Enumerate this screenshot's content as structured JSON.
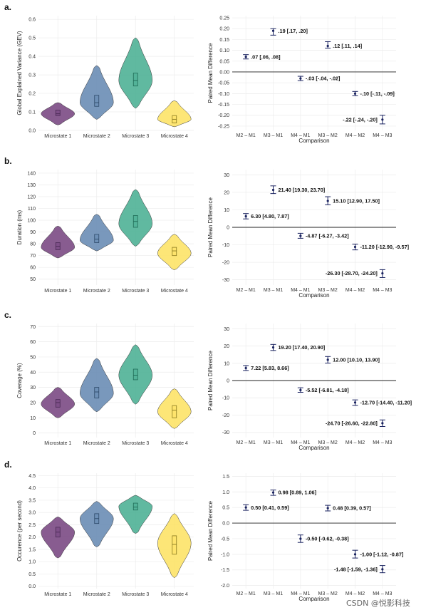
{
  "colors": {
    "microstates": [
      "#7b4a84",
      "#6a8db5",
      "#4fb196",
      "#fde368"
    ],
    "box_outline": [
      "#4a2a55",
      "#2e4a6a",
      "#1e6a55",
      "#8a7a20"
    ],
    "errorbar": "#1a2360",
    "grid": "#ececec"
  },
  "watermark": "CSDN @悦影科技",
  "chart_data": [
    {
      "panel": "a.",
      "type": "violin",
      "ylabel": "Global Explained Variance (GEV)",
      "ylim": [
        0,
        0.62
      ],
      "yticks": [
        0.0,
        0.1,
        0.2,
        0.3,
        0.4,
        0.5,
        0.6
      ],
      "ytick_labels": [
        "0.0",
        "0.1",
        "0.2",
        "0.3",
        "0.4",
        "0.5",
        "0.6"
      ],
      "categories": [
        "Microstate 1",
        "Microstate 2",
        "Microstate 3",
        "Microstate 4"
      ],
      "distributions": [
        {
          "min": 0.03,
          "max": 0.15,
          "mode": 0.09,
          "q1": 0.08,
          "median": 0.09,
          "q3": 0.11
        },
        {
          "min": 0.06,
          "max": 0.35,
          "mode": 0.15,
          "q1": 0.13,
          "median": 0.15,
          "q3": 0.19
        },
        {
          "min": 0.12,
          "max": 0.5,
          "mode": 0.27,
          "q1": 0.24,
          "median": 0.27,
          "q3": 0.31
        },
        {
          "min": 0.02,
          "max": 0.16,
          "mode": 0.06,
          "q1": 0.04,
          "median": 0.06,
          "q3": 0.08
        }
      ]
    },
    {
      "panel": "",
      "type": "errorbar",
      "xlabel": "Comparison",
      "ylabel": "Paired Mean Difference",
      "ylim": [
        -0.27,
        0.26
      ],
      "yticks": [
        -0.25,
        -0.2,
        -0.15,
        -0.1,
        -0.05,
        0.0,
        0.05,
        0.1,
        0.15,
        0.2,
        0.25
      ],
      "ytick_labels": [
        "-0.25",
        "-0.20",
        "-0.15",
        "-0.10",
        "-0.05",
        "0.00",
        "0.05",
        "0.10",
        "0.15",
        "0.20",
        "0.25"
      ],
      "categories": [
        "M2 – M1",
        "M3 – M1",
        "M4 – M1",
        "M3 – M2",
        "M4 – M2",
        "M4 – M3"
      ],
      "mean": [
        0.07,
        0.19,
        -0.03,
        0.12,
        -0.1,
        -0.22
      ],
      "lower": [
        0.06,
        0.17,
        -0.04,
        0.11,
        -0.11,
        -0.24
      ],
      "upper": [
        0.08,
        0.2,
        -0.02,
        0.14,
        -0.09,
        -0.2
      ],
      "labels": [
        ".07 [.06, .08]",
        ".19 [.17, .20]",
        "-.03 [-.04, -.02]",
        ".12 [.11, .14]",
        "-.10 [-.11, -.09]",
        "-.22 [-.24, -.20]"
      ],
      "label_side": [
        "right",
        "right",
        "right",
        "right",
        "right",
        "left"
      ]
    },
    {
      "panel": "b.",
      "type": "violin",
      "ylabel": "Duration (ms)",
      "ylim": [
        45,
        143
      ],
      "yticks": [
        50,
        60,
        70,
        80,
        90,
        100,
        110,
        120,
        130,
        140
      ],
      "ytick_labels": [
        "50",
        "60",
        "70",
        "80",
        "90",
        "100",
        "110",
        "120",
        "130",
        "140"
      ],
      "categories": [
        "Microstate 1",
        "Microstate 2",
        "Microstate 3",
        "Microstate 4"
      ],
      "distributions": [
        {
          "min": 68,
          "max": 95,
          "mode": 77,
          "q1": 75,
          "median": 78,
          "q3": 81
        },
        {
          "min": 74,
          "max": 105,
          "mode": 83,
          "q1": 81,
          "median": 84,
          "q3": 88
        },
        {
          "min": 78,
          "max": 126,
          "mode": 97,
          "q1": 94,
          "median": 99,
          "q3": 104
        },
        {
          "min": 58,
          "max": 88,
          "mode": 72,
          "q1": 70,
          "median": 74,
          "q3": 77
        }
      ]
    },
    {
      "panel": "",
      "type": "errorbar",
      "xlabel": "Comparison",
      "ylabel": "Paired Mean Difference",
      "ylim": [
        -33,
        33
      ],
      "yticks": [
        -30,
        -20,
        -10,
        0,
        10,
        20,
        30
      ],
      "ytick_labels": [
        "-30",
        "-20",
        "-10",
        "0",
        "10",
        "20",
        "30"
      ],
      "categories": [
        "M2 – M1",
        "M3 – M1",
        "M4 – M1",
        "M3 – M2",
        "M4 – M2",
        "M4 – M3"
      ],
      "mean": [
        6.3,
        21.4,
        -4.87,
        15.1,
        -11.2,
        -26.3
      ],
      "lower": [
        4.8,
        19.3,
        -6.27,
        12.9,
        -12.9,
        -28.7
      ],
      "upper": [
        7.87,
        23.7,
        -3.42,
        17.5,
        -9.57,
        -24.2
      ],
      "labels": [
        "6.30 [4.80, 7.87]",
        "21.40 [19.30, 23.70]",
        "-4.87 [-6.27, -3.42]",
        "15.10 [12.90, 17.50]",
        "-11.20 [-12.90, -9.57]",
        "-26.30 [-28.70, -24.20]"
      ],
      "label_side": [
        "right",
        "right",
        "right",
        "right",
        "right",
        "left"
      ]
    },
    {
      "panel": "c.",
      "type": "violin",
      "ylabel": "Coverage (%)",
      "ylim": [
        -3,
        72
      ],
      "yticks": [
        0,
        10,
        20,
        30,
        40,
        50,
        60,
        70
      ],
      "ytick_labels": [
        "0",
        "10",
        "20",
        "30",
        "40",
        "50",
        "60",
        "70"
      ],
      "categories": [
        "Microstate 1",
        "Microstate 2",
        "Microstate 3",
        "Microstate 4"
      ],
      "distributions": [
        {
          "min": 10,
          "max": 30,
          "mode": 19,
          "q1": 17,
          "median": 20,
          "q3": 22
        },
        {
          "min": 14,
          "max": 49,
          "mode": 26,
          "q1": 23,
          "median": 27,
          "q3": 30
        },
        {
          "min": 19,
          "max": 58,
          "mode": 38,
          "q1": 35,
          "median": 38,
          "q3": 42
        },
        {
          "min": 3,
          "max": 29,
          "mode": 14,
          "q1": 10,
          "median": 15,
          "q3": 18
        }
      ]
    },
    {
      "panel": "",
      "type": "errorbar",
      "xlabel": "Comparison",
      "ylabel": "Paired Mean Difference",
      "ylim": [
        -33,
        33
      ],
      "yticks": [
        -30,
        -20,
        -10,
        0,
        10,
        20,
        30
      ],
      "ytick_labels": [
        "-30",
        "-20",
        "-10",
        "0",
        "10",
        "20",
        "30"
      ],
      "categories": [
        "M2 – M1",
        "M3 – M1",
        "M4 – M1",
        "M3 – M2",
        "M4 – M2",
        "M4 – M3"
      ],
      "mean": [
        7.22,
        19.2,
        -5.52,
        12.0,
        -12.7,
        -24.7
      ],
      "lower": [
        5.83,
        17.4,
        -6.81,
        10.1,
        -14.4,
        -26.6
      ],
      "upper": [
        8.66,
        20.9,
        -4.18,
        13.9,
        -11.2,
        -22.8
      ],
      "labels": [
        "7.22 [5.83, 8.66]",
        "19.20 [17.40, 20.90]",
        "-5.52 [-6.81, -4.18]",
        "12.00 [10.10, 13.90]",
        "-12.70 [-14.40, -11.20]",
        "-24.70 [-26.60, -22.80]"
      ],
      "label_side": [
        "right",
        "right",
        "right",
        "right",
        "right",
        "left"
      ]
    },
    {
      "panel": "d.",
      "type": "violin",
      "ylabel": "Occurence (per second)",
      "ylim": [
        -0.1,
        4.6
      ],
      "yticks": [
        0.0,
        0.5,
        1.0,
        1.5,
        2.0,
        2.5,
        3.0,
        3.5,
        4.0,
        4.5
      ],
      "ytick_labels": [
        "0.0",
        "0.5",
        "1.0",
        "1.5",
        "2.0",
        "2.5",
        "3.0",
        "3.5",
        "4.0",
        "4.5"
      ],
      "categories": [
        "Microstate 1",
        "Microstate 2",
        "Microstate 3",
        "Microstate 4"
      ],
      "distributions": [
        {
          "min": 1.15,
          "max": 2.82,
          "mode": 2.2,
          "q1": 2.0,
          "median": 2.2,
          "q3": 2.4
        },
        {
          "min": 1.6,
          "max": 3.45,
          "mode": 2.75,
          "q1": 2.55,
          "median": 2.75,
          "q3": 2.95
        },
        {
          "min": 2.15,
          "max": 3.7,
          "mode": 3.25,
          "q1": 3.1,
          "median": 3.22,
          "q3": 3.38
        },
        {
          "min": 0.35,
          "max": 2.95,
          "mode": 1.75,
          "q1": 1.3,
          "median": 1.7,
          "q3": 2.05
        }
      ]
    },
    {
      "panel": "",
      "type": "errorbar",
      "xlabel": "Comparison",
      "ylabel": "Paired Mean Difference",
      "ylim": [
        -2.1,
        1.6
      ],
      "yticks": [
        -2.0,
        -1.5,
        -1.0,
        -0.5,
        0.0,
        0.5,
        1.0,
        1.5
      ],
      "ytick_labels": [
        "-2.0",
        "-1.5",
        "-1.0",
        "-0.5",
        "0.0",
        "0.5",
        "1.0",
        "1.5"
      ],
      "categories": [
        "M2 – M1",
        "M3 – M1",
        "M4 – M1",
        "M3 – M2",
        "M4 – M2",
        "M4 – M3"
      ],
      "mean": [
        0.5,
        0.98,
        -0.5,
        0.48,
        -1.0,
        -1.48
      ],
      "lower": [
        0.41,
        0.89,
        -0.62,
        0.39,
        -1.12,
        -1.59
      ],
      "upper": [
        0.59,
        1.06,
        -0.38,
        0.57,
        -0.87,
        -1.36
      ],
      "labels": [
        "0.50 [0.41, 0.59]",
        "0.98 [0.89, 1.06]",
        "-0.50 [-0.62, -0.38]",
        "0.48 [0.39, 0.57]",
        "-1.00 [-1.12, -0.87]",
        "-1.48 [-1.59, -1.36]"
      ],
      "label_side": [
        "right",
        "right",
        "right",
        "right",
        "right",
        "left"
      ]
    }
  ]
}
